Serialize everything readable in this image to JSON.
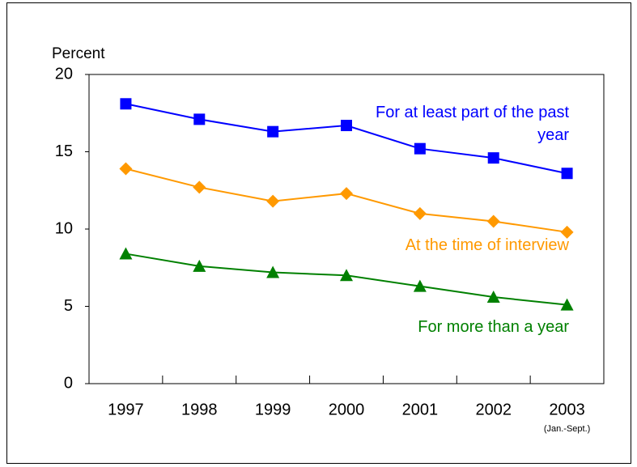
{
  "chart_data": {
    "type": "line",
    "y_label": "Percent",
    "categories": [
      "1997",
      "1998",
      "1999",
      "2000",
      "2001",
      "2002",
      "2003"
    ],
    "category_note": "(Jan.-Sept.)",
    "ylim": [
      0,
      20
    ],
    "yticks": [
      0,
      5,
      10,
      15,
      20
    ],
    "series": [
      {
        "name": "For at least part of the past year",
        "color": "#0000ff",
        "marker": "square",
        "values": [
          18.1,
          17.1,
          16.3,
          16.7,
          15.2,
          14.6,
          13.6
        ]
      },
      {
        "name": "At the time of interview",
        "color": "#ff9900",
        "marker": "diamond",
        "values": [
          13.9,
          12.7,
          11.8,
          12.3,
          11.0,
          10.5,
          9.8
        ]
      },
      {
        "name": "For more than a year",
        "color": "#008000",
        "marker": "triangle",
        "values": [
          8.4,
          7.6,
          7.2,
          7.0,
          6.3,
          5.6,
          5.1
        ]
      }
    ]
  }
}
